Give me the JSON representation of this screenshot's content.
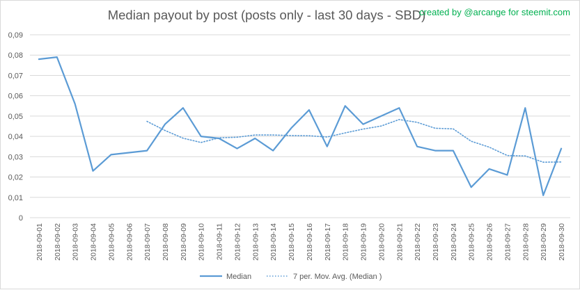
{
  "credit": "created by @arcange for steemit.com",
  "colors": {
    "line": "#5b9bd5",
    "grid": "#d9d9d9",
    "text": "#595959",
    "credit": "#00b050"
  },
  "chart_data": {
    "type": "line",
    "title": "Median payout by post (posts only - last 30 days - SBD)",
    "xlabel": "",
    "ylabel": "",
    "ylim": [
      0,
      0.09
    ],
    "yticks": [
      0,
      0.01,
      0.02,
      0.03,
      0.04,
      0.05,
      0.06,
      0.07,
      0.08,
      0.09
    ],
    "ytick_labels": [
      "0",
      "0,01",
      "0,02",
      "0,03",
      "0,04",
      "0,05",
      "0,06",
      "0,07",
      "0,08",
      "0,09"
    ],
    "grid": true,
    "legend_position": "bottom",
    "categories": [
      "2018-09-01",
      "2018-09-02",
      "2018-09-03",
      "2018-09-04",
      "2018-09-05",
      "2018-09-06",
      "2018-09-07",
      "2018-09-08",
      "2018-09-09",
      "2018-09-10",
      "2018-09-11",
      "2018-09-12",
      "2018-09-13",
      "2018-09-14",
      "2018-09-15",
      "2018-09-16",
      "2018-09-17",
      "2018-09-18",
      "2018-09-19",
      "2018-09-20",
      "2018-09-21",
      "2018-09-22",
      "2018-09-23",
      "2018-09-24",
      "2018-09-25",
      "2018-09-26",
      "2018-09-27",
      "2018-09-28",
      "2018-09-29",
      "2018-09-30"
    ],
    "series": [
      {
        "name": "Median",
        "style": "solid",
        "values": [
          0.078,
          0.079,
          0.056,
          0.023,
          0.031,
          0.032,
          0.033,
          0.046,
          0.054,
          0.04,
          0.039,
          0.034,
          0.039,
          0.033,
          0.044,
          0.053,
          0.035,
          0.055,
          0.046,
          0.05,
          0.054,
          0.035,
          0.033,
          0.033,
          0.015,
          0.024,
          0.021,
          0.054,
          0.011,
          0.034
        ]
      },
      {
        "name": "7 per. Mov. Avg. (Median )",
        "style": "dotted",
        "values": [
          null,
          null,
          null,
          null,
          null,
          null,
          0.0474,
          0.0429,
          0.0391,
          0.037,
          0.0393,
          0.0396,
          0.0407,
          0.0407,
          0.0404,
          0.0403,
          0.0397,
          0.0417,
          0.0436,
          0.0451,
          0.0483,
          0.0469,
          0.044,
          0.0437,
          0.0376,
          0.0347,
          0.0306,
          0.0304,
          0.0273,
          0.0274
        ]
      }
    ]
  }
}
